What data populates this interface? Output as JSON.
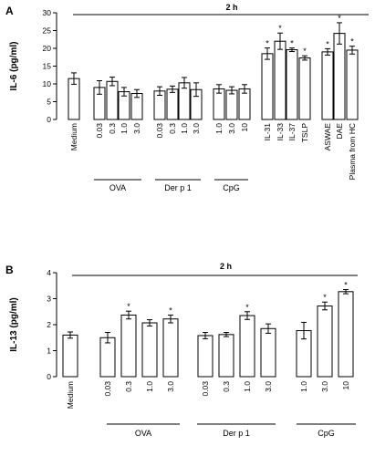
{
  "chart_data": [
    {
      "type": "bar",
      "panel": "A",
      "timepoint": "2 h",
      "ylabel": "IL-6 (pg/ml)",
      "ylim": [
        0,
        30
      ],
      "yticks": [
        0,
        5,
        10,
        15,
        20,
        25,
        30
      ],
      "categories": [
        "Medium",
        "0.03",
        "0.3",
        "1.0",
        "3.0",
        "0.03",
        "0.3",
        "1.0",
        "3.0",
        "1.0",
        "3.0",
        "10",
        "IL-31",
        "IL-33",
        "IL-37",
        "TSLP",
        "ASWAE",
        "DAE",
        "Plasma from HC"
      ],
      "values": [
        11.5,
        9.0,
        10.7,
        7.8,
        7.3,
        8.0,
        8.5,
        10.3,
        8.4,
        8.6,
        8.2,
        8.6,
        18.5,
        22.0,
        19.6,
        17.3,
        19.0,
        24.2,
        19.5
      ],
      "errors": [
        1.6,
        1.9,
        1.2,
        1.2,
        1.1,
        1.2,
        0.9,
        1.5,
        1.9,
        1.2,
        1.0,
        1.2,
        1.6,
        2.3,
        0.5,
        0.6,
        0.9,
        3.0,
        1.1
      ],
      "significant": [
        false,
        false,
        false,
        false,
        false,
        false,
        false,
        false,
        false,
        false,
        false,
        false,
        true,
        true,
        true,
        true,
        true,
        true,
        true
      ],
      "groups": [
        {
          "label": "OVA",
          "from": 1,
          "to": 4
        },
        {
          "label": "Der p 1",
          "from": 5,
          "to": 8
        },
        {
          "label": "CpG",
          "from": 9,
          "to": 11
        }
      ]
    },
    {
      "type": "bar",
      "panel": "B",
      "timepoint": "2 h",
      "ylabel": "IL-13 (pg/ml)",
      "ylim": [
        0,
        4
      ],
      "yticks": [
        0,
        1,
        2,
        3,
        4
      ],
      "categories": [
        "Medium",
        "0.03",
        "0.3",
        "1.0",
        "3.0",
        "0.03",
        "0.3",
        "1.0",
        "3.0",
        "1.0",
        "3.0",
        "10"
      ],
      "values": [
        1.6,
        1.5,
        2.37,
        2.07,
        2.22,
        1.58,
        1.62,
        2.35,
        1.85,
        1.77,
        2.72,
        3.27
      ],
      "errors": [
        0.12,
        0.2,
        0.15,
        0.12,
        0.15,
        0.12,
        0.08,
        0.15,
        0.18,
        0.32,
        0.15,
        0.08
      ],
      "significant": [
        false,
        false,
        true,
        false,
        true,
        false,
        false,
        true,
        false,
        false,
        true,
        true
      ],
      "groups": [
        {
          "label": "OVA",
          "from": 1,
          "to": 4
        },
        {
          "label": "Der p 1",
          "from": 5,
          "to": 8
        },
        {
          "label": "CpG",
          "from": 9,
          "to": 11
        }
      ]
    }
  ]
}
